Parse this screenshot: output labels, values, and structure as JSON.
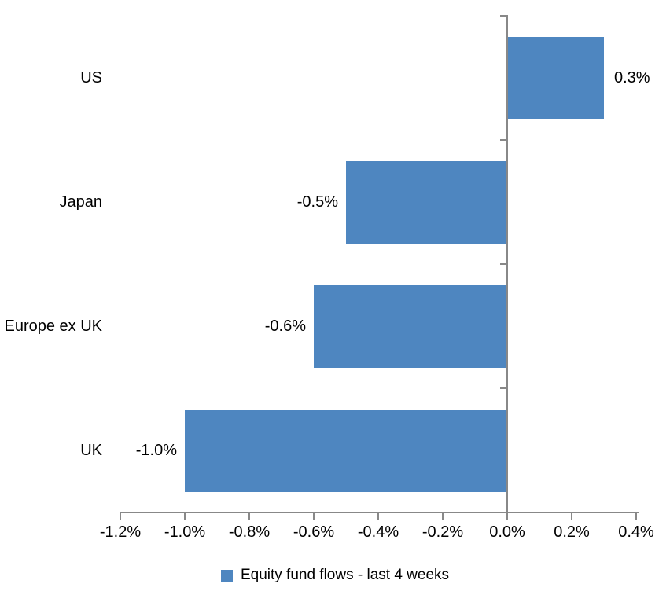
{
  "chart_data": {
    "type": "bar",
    "orientation": "horizontal",
    "title": "",
    "categories": [
      "US",
      "Japan",
      "Europe ex UK",
      "UK"
    ],
    "values": [
      0.3,
      -0.5,
      -0.6,
      -1.0
    ],
    "data_labels": [
      "0.3%",
      "-0.5%",
      "-0.6%",
      "-1.0%"
    ],
    "unit": "%",
    "x_ticks": [
      "-1.2%",
      "-1.0%",
      "-0.8%",
      "-0.6%",
      "-0.4%",
      "-0.2%",
      "0.0%",
      "0.2%",
      "0.4%"
    ],
    "xlim": [
      -1.2,
      0.4
    ],
    "grid": false,
    "legend_position": "bottom",
    "series": [
      {
        "name": "Equity fund flows - last 4 weeks",
        "values": [
          0.3,
          -0.5,
          -0.6,
          -1.0
        ]
      }
    ],
    "bar_color": "#4E86C0",
    "axis_color": "#888888",
    "text_color": "#000000"
  },
  "legend": {
    "label": "Equity fund flows - last 4 weeks"
  }
}
